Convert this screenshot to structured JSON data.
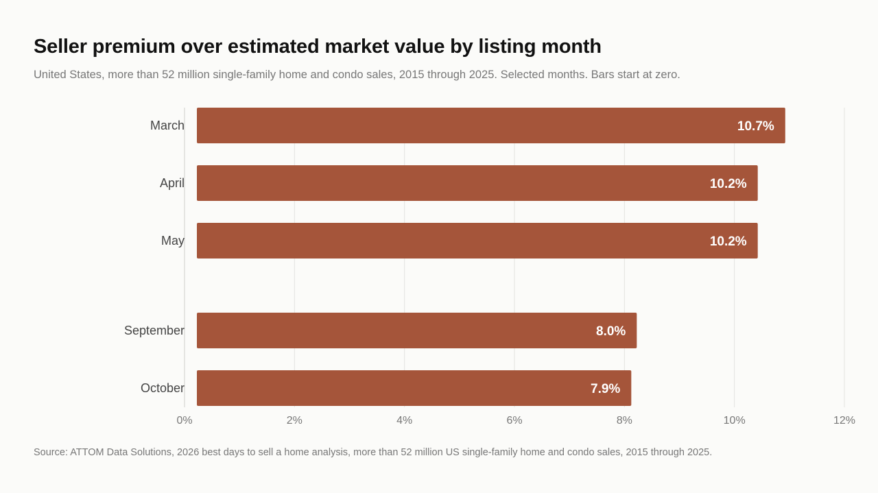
{
  "colors": {
    "bar": "#a5553a",
    "grid": "#e3e3e0",
    "axis": "#cfcfcc",
    "background": "#fbfbf9"
  },
  "chart_data": {
    "type": "bar",
    "orientation": "horizontal",
    "title": "Seller premium over estimated market value by listing month",
    "subtitle": "United States, more than 52 million single-family home and condo sales, 2015 through 2025. Selected months. Bars start at zero.",
    "source": "Source: ATTOM Data Solutions, 2026 best days to sell a home analysis, more than 52 million US single-family home and condo sales, 2015 through 2025.",
    "categories": [
      "March",
      "April",
      "May",
      "September",
      "October"
    ],
    "groups": [
      [
        "March",
        "April",
        "May"
      ],
      [
        "September",
        "October"
      ]
    ],
    "values": [
      10.7,
      10.2,
      10.2,
      8.0,
      7.9
    ],
    "value_labels": [
      "10.7%",
      "10.2%",
      "10.2%",
      "8.0%",
      "7.9%"
    ],
    "xlim": [
      0,
      12
    ],
    "xticks": [
      0,
      2,
      4,
      6,
      8,
      10,
      12
    ],
    "xtick_labels": [
      "0%",
      "2%",
      "4%",
      "6%",
      "8%",
      "10%",
      "12%"
    ],
    "xlabel": "",
    "ylabel": "",
    "grid": true,
    "legend": "none"
  }
}
